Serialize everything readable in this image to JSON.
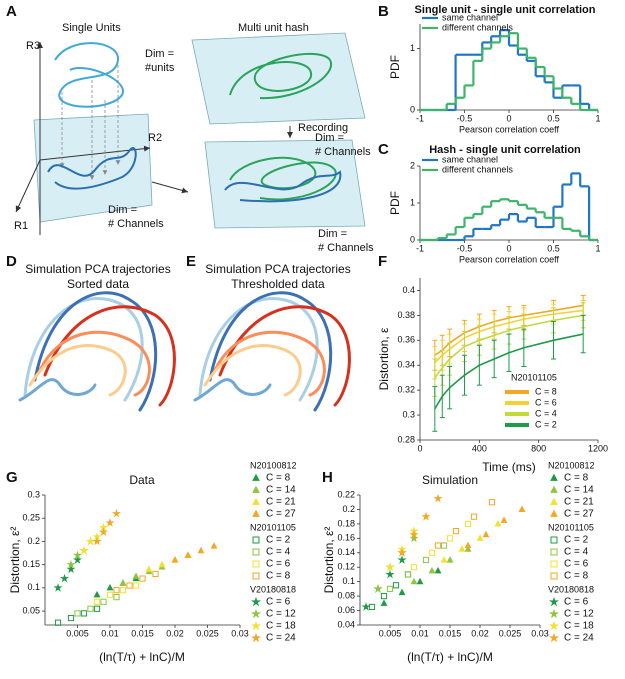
{
  "panel_labels": [
    "A",
    "B",
    "C",
    "D",
    "E",
    "F",
    "G",
    "H"
  ],
  "diagram_a": {
    "single_units": "Single Units",
    "dim_units": [
      "Dim =",
      "#units"
    ],
    "axes": [
      "R3",
      "R2",
      "R1"
    ],
    "dim_channels_base": [
      "Dim =",
      "# Channels"
    ],
    "multi_unit_hash": "Multi unit hash",
    "dim_channels_hash": [
      "Dim =",
      "# Channels"
    ],
    "recording": "Recording",
    "dim_channels_recording": [
      "Dim =",
      "# Channels"
    ]
  },
  "trajectories": [
    {
      "title": [
        "Simulation PCA trajectories",
        "Sorted data"
      ]
    },
    {
      "title": [
        "Simulation PCA trajectories",
        "Thresholded data"
      ]
    }
  ],
  "chart_data": [
    {
      "type": "histogram",
      "title": "Single unit - single unit correlation",
      "xlabel": "Pearson correlation coeff",
      "ylabel": "PDF",
      "bins": [
        -1,
        -0.9,
        -0.8,
        -0.7,
        -0.6,
        -0.5,
        -0.4,
        -0.3,
        -0.2,
        -0.1,
        0,
        0.1,
        0.2,
        0.3,
        0.4,
        0.5,
        0.6,
        0.7,
        0.8,
        0.9,
        1
      ],
      "series": [
        {
          "name": "same channel",
          "color": "#1f77c4",
          "values": [
            0,
            0,
            0,
            0,
            0.9,
            0.9,
            0.9,
            1.1,
            1.2,
            1.3,
            1.05,
            0.9,
            0.8,
            0.55,
            0.45,
            0.2,
            0.4,
            0.4,
            0.1,
            0
          ]
        },
        {
          "name": "different channels",
          "color": "#3cb56a",
          "values": [
            0,
            0,
            0,
            0.1,
            0.2,
            0.4,
            0.8,
            1.0,
            1.1,
            1.2,
            1.25,
            1.0,
            0.85,
            0.7,
            0.55,
            0.35,
            0.2,
            0.1,
            0,
            0
          ]
        }
      ],
      "xlim": [
        -1,
        1
      ],
      "xticks": [
        -1,
        -0.5,
        0,
        0.5,
        1
      ],
      "ylim": [
        0,
        1.4
      ],
      "yticks": [
        0,
        1
      ]
    },
    {
      "type": "histogram",
      "title": "Hash - single unit correlation",
      "xlabel": "Pearson correlation coeff",
      "ylabel": "PDF",
      "bins": [
        -1,
        -0.9,
        -0.8,
        -0.7,
        -0.6,
        -0.5,
        -0.4,
        -0.3,
        -0.2,
        -0.1,
        0,
        0.1,
        0.2,
        0.3,
        0.4,
        0.5,
        0.6,
        0.7,
        0.8,
        0.9,
        1
      ],
      "series": [
        {
          "name": "same channel",
          "color": "#1f77c4",
          "values": [
            0,
            0,
            0,
            0,
            0,
            0.1,
            0.3,
            0.3,
            0.4,
            0.55,
            0.7,
            0.5,
            0.6,
            0.35,
            0.35,
            0.9,
            1.5,
            1.8,
            1.45,
            0
          ]
        },
        {
          "name": "different channels",
          "color": "#3cb56a",
          "values": [
            0,
            0,
            0.05,
            0.15,
            0.35,
            0.6,
            0.7,
            0.9,
            1.05,
            1.1,
            1.05,
            0.95,
            0.85,
            0.75,
            0.6,
            0.6,
            0.3,
            0.25,
            0.1,
            0
          ]
        }
      ],
      "xlim": [
        -1,
        1
      ],
      "xticks": [
        -1,
        -0.5,
        0,
        0.5,
        1
      ],
      "ylim": [
        0,
        2
      ],
      "yticks": [
        0,
        1,
        2
      ]
    },
    {
      "type": "line",
      "xlabel": "Time (ms)",
      "ylabel": "Distortion, ε",
      "legend_title": "N20101105",
      "x": [
        100,
        150,
        200,
        300,
        400,
        500,
        600,
        700,
        900,
        1100
      ],
      "series": [
        {
          "name": "C = 8",
          "color": "#f5a623",
          "values": [
            0.348,
            0.352,
            0.358,
            0.366,
            0.371,
            0.375,
            0.378,
            0.38,
            0.384,
            0.388
          ],
          "errors": [
            0.012,
            0.012,
            0.011,
            0.01,
            0.01,
            0.009,
            0.009,
            0.008,
            0.008,
            0.008
          ]
        },
        {
          "name": "C = 6",
          "color": "#f7d038",
          "values": [
            0.342,
            0.348,
            0.353,
            0.362,
            0.367,
            0.371,
            0.374,
            0.377,
            0.381,
            0.384
          ],
          "errors": [
            0.013,
            0.012,
            0.012,
            0.011,
            0.01,
            0.01,
            0.009,
            0.009,
            0.008,
            0.008
          ]
        },
        {
          "name": "C = 4",
          "color": "#c2d93a",
          "values": [
            0.33,
            0.338,
            0.345,
            0.355,
            0.36,
            0.364,
            0.368,
            0.371,
            0.376,
            0.38
          ],
          "errors": [
            0.015,
            0.014,
            0.013,
            0.012,
            0.012,
            0.011,
            0.011,
            0.01,
            0.01,
            0.01
          ]
        },
        {
          "name": "C = 2",
          "color": "#1e9a48",
          "values": [
            0.305,
            0.315,
            0.322,
            0.332,
            0.34,
            0.345,
            0.35,
            0.354,
            0.36,
            0.365
          ],
          "errors": [
            0.018,
            0.017,
            0.017,
            0.016,
            0.016,
            0.015,
            0.015,
            0.015,
            0.015,
            0.015
          ]
        }
      ],
      "xlim": [
        0,
        1200
      ],
      "xticks": [
        0,
        400,
        800,
        1200
      ],
      "ylim": [
        0.28,
        0.41
      ],
      "yticks": [
        0.28,
        0.3,
        0.32,
        0.34,
        0.36,
        0.38,
        0.4
      ]
    },
    {
      "type": "scatter",
      "title": "Data",
      "xlabel": "(ln(T/τ) + lnC)/M",
      "ylabel": "Distortion, ε²",
      "groups": [
        {
          "name": "N20100812",
          "marker": "triangle",
          "filled": true,
          "series": [
            {
              "name": "C = 8",
              "color": "#1e9a48",
              "x": [
                0.008,
                0.01,
                0.012,
                0.014
              ],
              "values": [
                0.085,
                0.1,
                0.11,
                0.12
              ]
            },
            {
              "name": "C = 14",
              "color": "#8dc63f",
              "x": [
                0.012,
                0.014,
                0.016,
                0.018
              ],
              "values": [
                0.11,
                0.125,
                0.135,
                0.145
              ]
            },
            {
              "name": "C = 21",
              "color": "#f3e130",
              "x": [
                0.016,
                0.018,
                0.02,
                0.022
              ],
              "values": [
                0.14,
                0.15,
                0.16,
                0.17
              ]
            },
            {
              "name": "C = 27",
              "color": "#f5a623",
              "x": [
                0.02,
                0.022,
                0.024,
                0.026
              ],
              "values": [
                0.16,
                0.17,
                0.18,
                0.19
              ]
            }
          ]
        },
        {
          "name": "N20101105",
          "marker": "square",
          "filled": false,
          "series": [
            {
              "name": "C = 2",
              "color": "#1e9a48",
              "x": [
                0.002,
                0.004,
                0.006,
                0.008
              ],
              "values": [
                0.025,
                0.035,
                0.045,
                0.055
              ]
            },
            {
              "name": "C = 4",
              "color": "#8dc63f",
              "x": [
                0.005,
                0.007,
                0.009,
                0.011
              ],
              "values": [
                0.045,
                0.055,
                0.07,
                0.08
              ]
            },
            {
              "name": "C = 6",
              "color": "#f3e130",
              "x": [
                0.008,
                0.01,
                0.012,
                0.014
              ],
              "values": [
                0.07,
                0.085,
                0.095,
                0.105
              ]
            },
            {
              "name": "C = 8",
              "color": "#f5a623",
              "x": [
                0.011,
                0.013,
                0.015,
                0.017
              ],
              "values": [
                0.095,
                0.105,
                0.12,
                0.13
              ]
            }
          ]
        },
        {
          "name": "V20180818",
          "marker": "star",
          "filled": true,
          "series": [
            {
              "name": "C = 6",
              "color": "#1e9a48",
              "x": [
                0.002,
                0.003,
                0.004,
                0.005
              ],
              "values": [
                0.1,
                0.12,
                0.14,
                0.16
              ]
            },
            {
              "name": "C = 12",
              "color": "#8dc63f",
              "x": [
                0.004,
                0.005,
                0.006,
                0.007
              ],
              "values": [
                0.15,
                0.17,
                0.18,
                0.2
              ]
            },
            {
              "name": "C = 18",
              "color": "#f3e130",
              "x": [
                0.006,
                0.007,
                0.008,
                0.009
              ],
              "values": [
                0.18,
                0.2,
                0.21,
                0.23
              ]
            },
            {
              "name": "C = 24",
              "color": "#f5a623",
              "x": [
                0.008,
                0.009,
                0.01,
                0.011
              ],
              "values": [
                0.2,
                0.22,
                0.24,
                0.26
              ]
            }
          ]
        }
      ],
      "xlim": [
        0,
        0.03
      ],
      "xticks": [
        0.005,
        0.01,
        0.015,
        0.02,
        0.025,
        0.03
      ],
      "ylim": [
        0.02,
        0.3
      ],
      "yticks": [
        0.05,
        0.1,
        0.15,
        0.2,
        0.25,
        0.3
      ]
    },
    {
      "type": "scatter",
      "title": "Simulation",
      "xlabel": "(ln(T/τ) + lnC)/M",
      "ylabel": "Distortion, ε²",
      "groups": [
        {
          "name": "N20100812",
          "marker": "triangle",
          "filled": true,
          "series": [
            {
              "name": "C = 8",
              "color": "#1e9a48",
              "x": [
                0.004,
                0.007,
                0.01,
                0.013
              ],
              "values": [
                0.07,
                0.085,
                0.1,
                0.115
              ]
            },
            {
              "name": "C = 14",
              "color": "#8dc63f",
              "x": [
                0.009,
                0.012,
                0.015,
                0.018
              ],
              "values": [
                0.1,
                0.115,
                0.13,
                0.145
              ]
            },
            {
              "name": "C = 21",
              "color": "#f3e130",
              "x": [
                0.014,
                0.017,
                0.02,
                0.023
              ],
              "values": [
                0.13,
                0.145,
                0.16,
                0.18
              ]
            },
            {
              "name": "C = 27",
              "color": "#f5a623",
              "x": [
                0.018,
                0.021,
                0.024,
                0.027
              ],
              "values": [
                0.15,
                0.165,
                0.185,
                0.2
              ]
            }
          ]
        },
        {
          "name": "N20101105",
          "marker": "square",
          "filled": false,
          "series": [
            {
              "name": "C = 2",
              "color": "#1e9a48",
              "x": [
                0.002,
                0.004,
                0.006,
                0.008
              ],
              "values": [
                0.065,
                0.08,
                0.095,
                0.11
              ]
            },
            {
              "name": "C = 4",
              "color": "#8dc63f",
              "x": [
                0.005,
                0.008,
                0.011,
                0.014
              ],
              "values": [
                0.09,
                0.11,
                0.13,
                0.15
              ]
            },
            {
              "name": "C = 6",
              "color": "#f3e130",
              "x": [
                0.009,
                0.012,
                0.015,
                0.018
              ],
              "values": [
                0.12,
                0.14,
                0.16,
                0.18
              ]
            },
            {
              "name": "C = 8",
              "color": "#f5a623",
              "x": [
                0.013,
                0.016,
                0.019,
                0.022
              ],
              "values": [
                0.15,
                0.17,
                0.19,
                0.21
              ]
            }
          ]
        },
        {
          "name": "V20180818",
          "marker": "star",
          "filled": true,
          "series": [
            {
              "name": "C = 6",
              "color": "#1e9a48",
              "x": [
                0.001,
                0.003,
                0.005,
                0.007
              ],
              "values": [
                0.065,
                0.09,
                0.11,
                0.13
              ]
            },
            {
              "name": "C = 12",
              "color": "#8dc63f",
              "x": [
                0.003,
                0.005,
                0.007,
                0.009
              ],
              "values": [
                0.09,
                0.12,
                0.14,
                0.16
              ]
            },
            {
              "name": "C = 18",
              "color": "#f3e130",
              "x": [
                0.005,
                0.007,
                0.009,
                0.011
              ],
              "values": [
                0.12,
                0.145,
                0.17,
                0.19
              ]
            },
            {
              "name": "C = 24",
              "color": "#f5a623",
              "x": [
                0.007,
                0.009,
                0.011,
                0.013
              ],
              "values": [
                0.14,
                0.165,
                0.19,
                0.215
              ]
            }
          ]
        }
      ],
      "xlim": [
        0,
        0.03
      ],
      "xticks": [
        0.005,
        0.01,
        0.015,
        0.02,
        0.025,
        0.03
      ],
      "ylim": [
        0.04,
        0.22
      ],
      "yticks": [
        0.04,
        0.06,
        0.08,
        0.1,
        0.12,
        0.14,
        0.16,
        0.18,
        0.2,
        0.22
      ]
    }
  ]
}
